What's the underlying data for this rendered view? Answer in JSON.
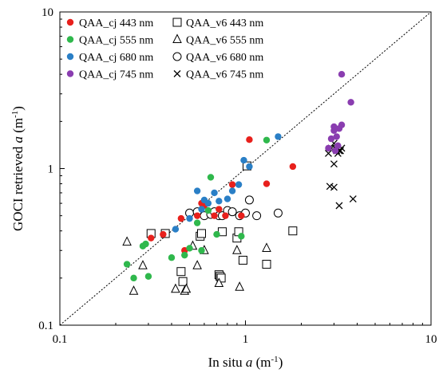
{
  "chart_data": {
    "type": "scatter",
    "xlabel": {
      "main": "In situ ",
      "var": "a",
      "unit": " (m",
      "sup": "-1",
      "close": ")"
    },
    "ylabel": {
      "main": "GOCI retrieved ",
      "var": "a",
      "unit": " (m",
      "sup": "-1",
      "close": ")"
    },
    "xscale": "log",
    "yscale": "log",
    "xlim": [
      0.1,
      10
    ],
    "ylim": [
      0.1,
      10
    ],
    "x_ticks": [
      {
        "value": 0.1,
        "label": "0.1"
      },
      {
        "value": 1,
        "label": "1"
      },
      {
        "value": 10,
        "label": "10"
      }
    ],
    "y_ticks": [
      {
        "value": 0.1,
        "label": "0.1"
      },
      {
        "value": 1,
        "label": "1"
      },
      {
        "value": 10,
        "label": "10"
      }
    ],
    "reference_line": "1:1 dotted",
    "grid": false,
    "legend_position": "top-left",
    "colors": {
      "red": "#e8201c",
      "green": "#2fb84c",
      "blue": "#2a7fc6",
      "purple": "#8a3db0",
      "black": "#000000"
    },
    "series": [
      {
        "name": "QAA_cj 443 nm",
        "marker": "dot",
        "color": "#e8201c",
        "x": [
          0.31,
          0.36,
          0.45,
          0.47,
          0.55,
          0.58,
          0.6,
          0.68,
          0.72,
          0.78,
          0.85,
          0.95,
          1.05,
          1.3,
          1.8
        ],
        "y": [
          0.36,
          0.38,
          0.48,
          0.3,
          0.5,
          0.6,
          0.58,
          0.5,
          0.55,
          0.5,
          0.79,
          0.5,
          1.53,
          0.8,
          1.03
        ]
      },
      {
        "name": "QAA_cj 555 nm",
        "marker": "dot",
        "color": "#2fb84c",
        "x": [
          0.23,
          0.25,
          0.28,
          0.29,
          0.3,
          0.4,
          0.47,
          0.5,
          0.55,
          0.58,
          0.63,
          0.65,
          0.7,
          0.95,
          1.3
        ],
        "y": [
          0.245,
          0.2,
          0.32,
          0.33,
          0.205,
          0.27,
          0.28,
          0.31,
          0.45,
          0.3,
          0.54,
          0.88,
          0.38,
          0.37,
          1.52
        ]
      },
      {
        "name": "QAA_cj 680 nm",
        "marker": "dot",
        "color": "#2a7fc6",
        "x": [
          0.42,
          0.5,
          0.55,
          0.58,
          0.6,
          0.63,
          0.68,
          0.72,
          0.8,
          0.85,
          0.92,
          0.98,
          1.05,
          1.5
        ],
        "y": [
          0.41,
          0.48,
          0.72,
          0.55,
          0.63,
          0.6,
          0.7,
          0.62,
          0.64,
          0.72,
          0.79,
          1.13,
          1.03,
          1.6
        ]
      },
      {
        "name": "QAA_cj 745 nm",
        "marker": "dot",
        "color": "#8a3db0",
        "x": [
          2.8,
          2.9,
          3.0,
          3.0,
          3.05,
          3.1,
          3.15,
          3.2,
          3.3,
          3.7,
          3.3
        ],
        "y": [
          1.35,
          1.55,
          1.75,
          1.85,
          1.3,
          1.6,
          1.4,
          1.8,
          1.9,
          2.65,
          4.0
        ]
      },
      {
        "name": "QAA_v6 443 nm",
        "marker": "square",
        "color": "#000000",
        "x": [
          0.31,
          0.37,
          0.45,
          0.46,
          0.57,
          0.58,
          0.72,
          0.73,
          0.74,
          0.75,
          0.9,
          0.92,
          0.97,
          1.02,
          1.3,
          1.8
        ],
        "y": [
          0.385,
          0.385,
          0.22,
          0.19,
          0.37,
          0.385,
          0.21,
          0.205,
          0.2,
          0.395,
          0.36,
          0.395,
          0.26,
          1.04,
          0.245,
          0.4
        ]
      },
      {
        "name": "QAA_v6 555 nm",
        "marker": "triangle",
        "color": "#000000",
        "x": [
          0.23,
          0.25,
          0.28,
          0.42,
          0.47,
          0.48,
          0.52,
          0.55,
          0.6,
          0.72,
          0.9,
          0.93,
          1.3
        ],
        "y": [
          0.34,
          0.165,
          0.24,
          0.17,
          0.165,
          0.17,
          0.32,
          0.24,
          0.3,
          0.185,
          0.3,
          0.175,
          0.31
        ]
      },
      {
        "name": "QAA_v6 680 nm",
        "marker": "circle",
        "color": "#000000",
        "x": [
          0.5,
          0.55,
          0.6,
          0.65,
          0.68,
          0.72,
          0.75,
          0.8,
          0.85,
          0.93,
          1.0,
          1.05,
          1.15,
          1.5
        ],
        "y": [
          0.52,
          0.53,
          0.5,
          0.51,
          0.53,
          0.5,
          0.5,
          0.54,
          0.53,
          0.5,
          0.52,
          0.63,
          0.5,
          0.52
        ]
      },
      {
        "name": "QAA_v6 745 nm",
        "marker": "x",
        "color": "#000000",
        "x": [
          2.8,
          2.9,
          3.0,
          3.05,
          3.1,
          3.15,
          3.2,
          3.25,
          3.3,
          3.0,
          2.85,
          3.0,
          3.2,
          3.8
        ],
        "y": [
          1.25,
          1.35,
          1.45,
          1.35,
          1.3,
          1.25,
          1.3,
          1.3,
          1.35,
          1.07,
          0.77,
          0.76,
          0.58,
          0.64
        ]
      }
    ]
  }
}
